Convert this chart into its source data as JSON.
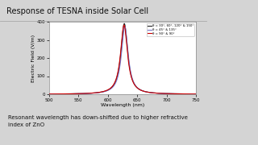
{
  "title": "Response of TESNA inside Solar Cell",
  "xlabel": "Wavelength (nm)",
  "ylabel": "Electric Field (V/m)",
  "xlim": [
    500,
    750
  ],
  "ylim": [
    0,
    400
  ],
  "yticks": [
    0,
    100,
    200,
    300,
    400
  ],
  "xticks": [
    500,
    550,
    600,
    650,
    700,
    750
  ],
  "peak_wavelength": 628,
  "peak_value": 390,
  "gamma": 7,
  "legend": [
    {
      "label": "θ = 30°, 60°, 120° & 150°",
      "color": "#222222",
      "lw": 0.8
    },
    {
      "label": "θ = 45° & 135°",
      "color": "#7777cc",
      "lw": 0.8
    },
    {
      "label": "θ = 90° & 90°",
      "color": "#cc0000",
      "lw": 0.8
    }
  ],
  "slide_bg": "#d4d4d4",
  "title_bg": "#e8e8e8",
  "plot_bg": "#ffffff",
  "sidebar_bg": "#1a1a2e",
  "text_box_bg": "#ccd9f0",
  "text_box_border": "#8899bb",
  "annotation": "Resonant wavelength has down-shifted due to higher refractive\nindex of ZnO",
  "title_color": "#111111",
  "title_fontsize": 7.0,
  "tick_fontsize": 4.0,
  "label_fontsize": 4.5,
  "legend_fontsize": 2.8
}
